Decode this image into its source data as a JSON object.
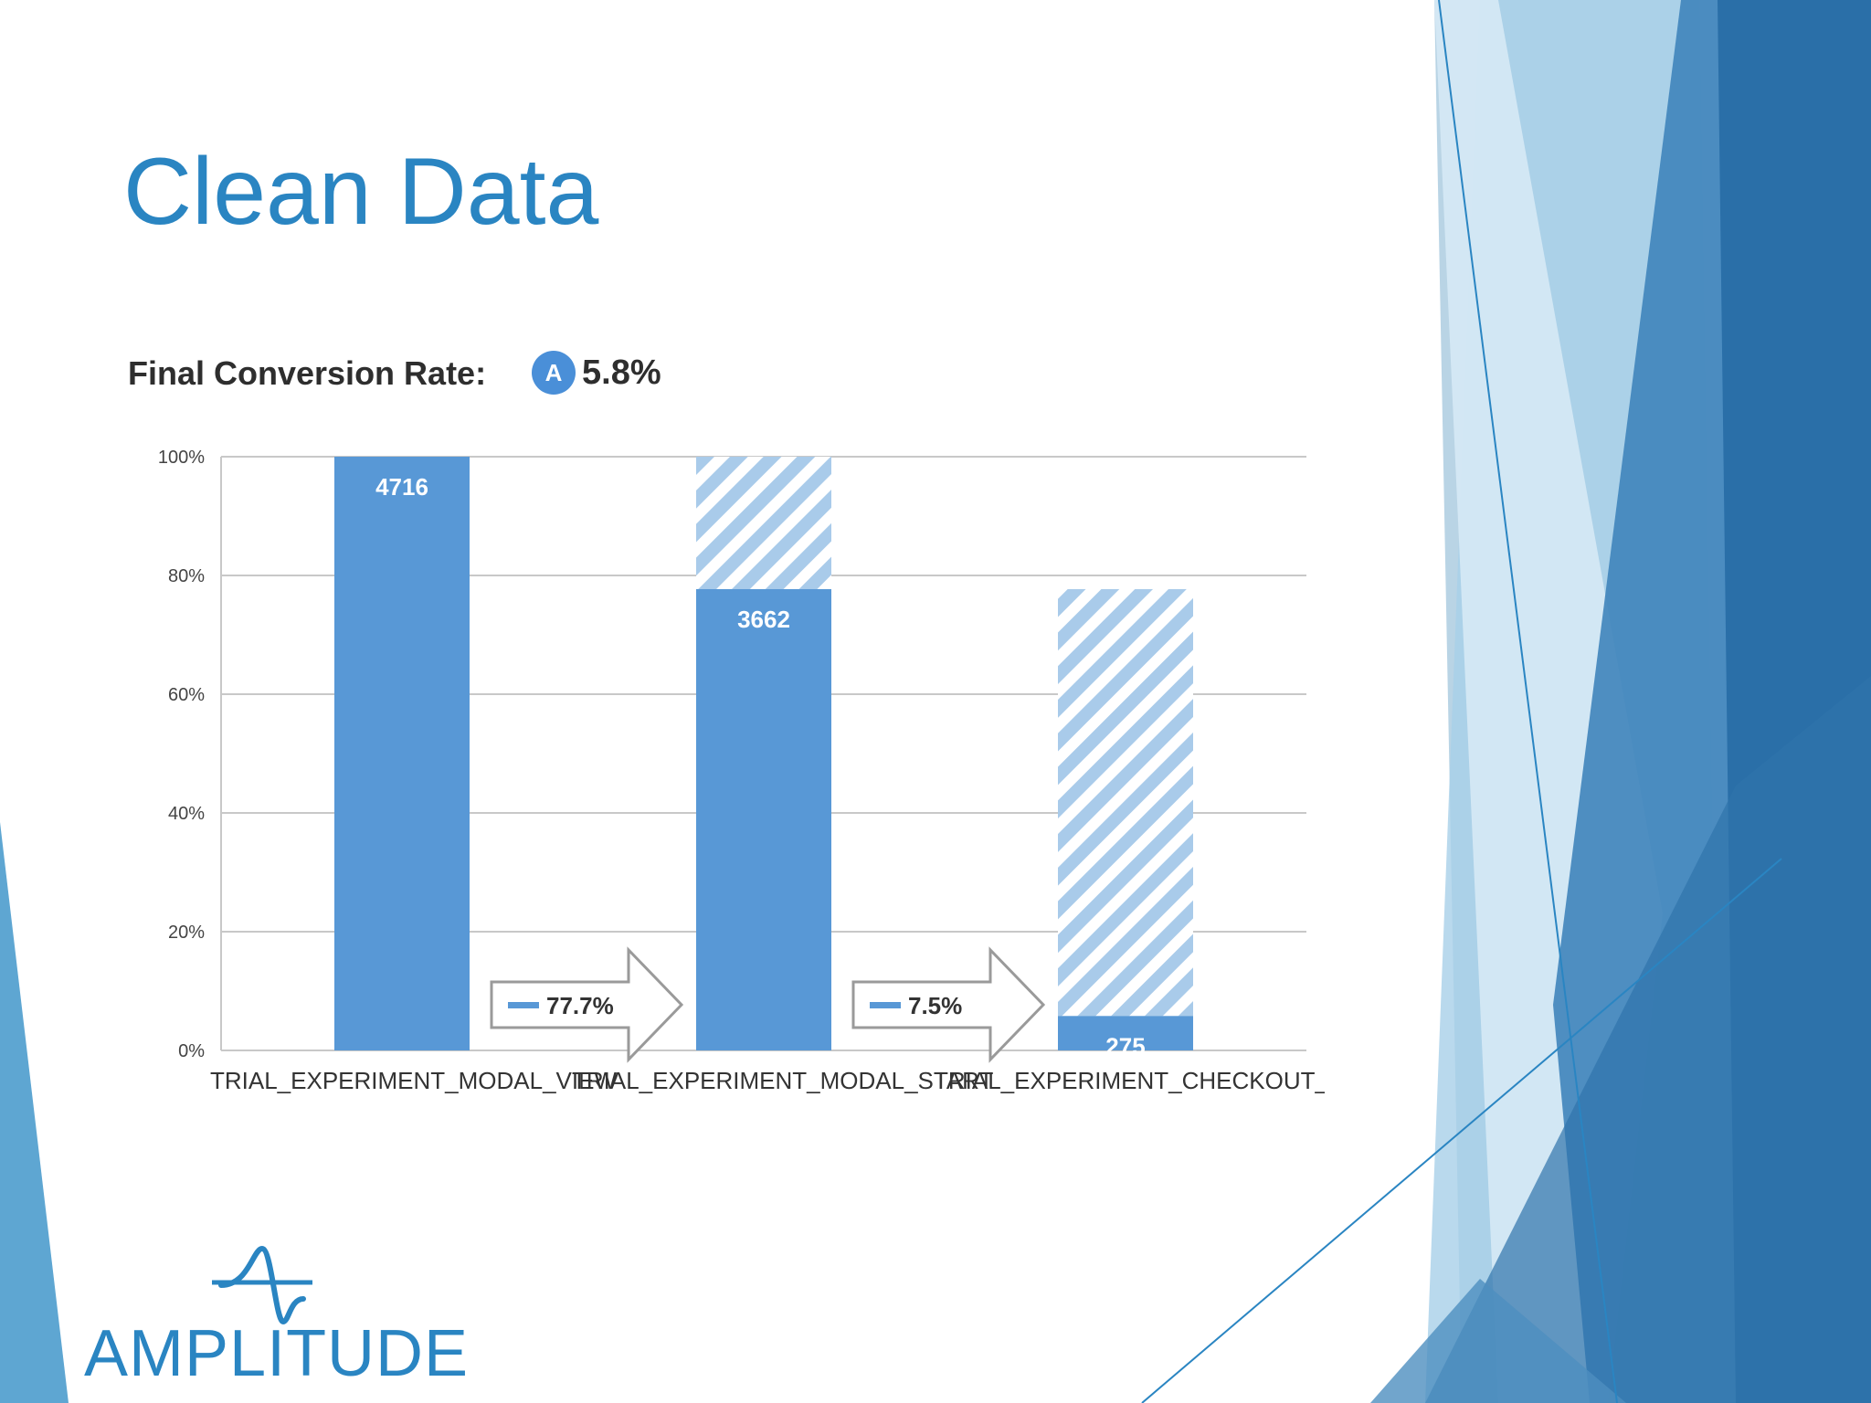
{
  "slide": {
    "title": "Clean Data"
  },
  "conversion": {
    "label": "Final Conversion Rate:",
    "badge": "A",
    "value": "5.8%"
  },
  "logo": {
    "text": "AMPLITUDE"
  },
  "colors": {
    "title": "#2a85c2",
    "bar": "#5898d6",
    "hatch": "#a9cbea",
    "grid": "#c8c8c8",
    "deco_dark": "#2a6fa8",
    "deco_light": "#a8cfe8"
  },
  "chart_data": {
    "type": "bar",
    "title": "",
    "xlabel": "",
    "ylabel": "",
    "ylim": [
      0,
      100
    ],
    "y_ticks": [
      "0%",
      "20%",
      "40%",
      "60%",
      "80%",
      "100%"
    ],
    "categories": [
      "TRIAL_EXPERIMENT_MODAL_VIEW",
      "TRIAL_EXPERIMENT_MODAL_START",
      "TRIAL_EXPERIMENT_CHECKOUT_BI"
    ],
    "counts": [
      4716,
      3662,
      275
    ],
    "values": [
      100,
      77.7,
      5.8
    ],
    "dropoff_top": [
      100,
      100,
      77.7
    ],
    "step_conversion": [
      "77.7%",
      "7.5%"
    ],
    "grid": true,
    "legend": "none"
  }
}
